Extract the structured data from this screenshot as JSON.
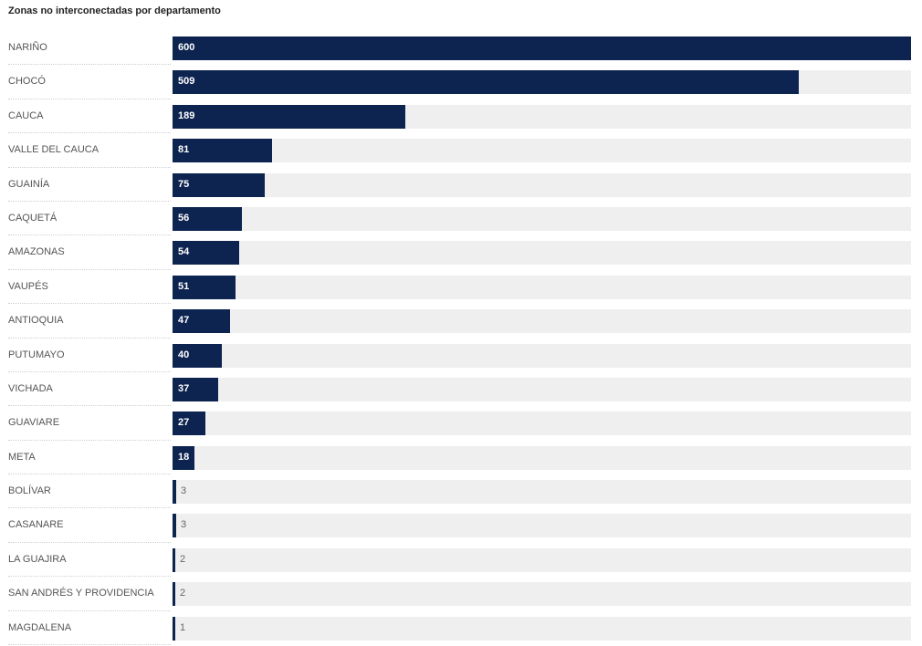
{
  "chart_data": {
    "type": "bar",
    "orientation": "horizontal",
    "title": "Zonas no interconectadas por departamento",
    "categories": [
      "NARIÑO",
      "CHOCÓ",
      "CAUCA",
      "VALLE DEL CAUCA",
      "GUAINÍA",
      "CAQUETÁ",
      "AMAZONAS",
      "VAUPÉS",
      "ANTIOQUIA",
      "PUTUMAYO",
      "VICHADA",
      "GUAVIARE",
      "META",
      "BOLÍVAR",
      "CASANARE",
      "LA GUAJIRA",
      "SAN ANDRÉS Y PROVIDENCIA",
      "MAGDALENA"
    ],
    "values": [
      600,
      509,
      189,
      81,
      75,
      56,
      54,
      51,
      47,
      40,
      37,
      27,
      18,
      3,
      3,
      2,
      2,
      1
    ],
    "xlim": [
      0,
      600
    ],
    "grid": false,
    "legend": false
  },
  "colors": {
    "bar": "#0d2350",
    "track": "#efefef"
  }
}
